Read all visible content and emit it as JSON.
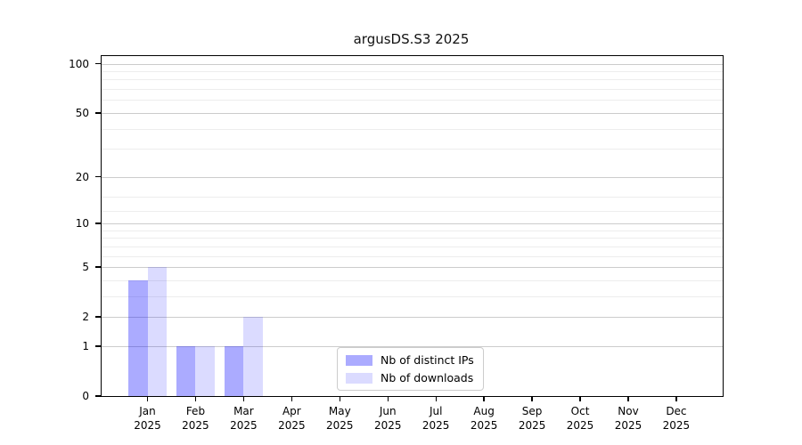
{
  "chart_data": {
    "type": "bar",
    "title": "argusDS.S3 2025",
    "categories": [
      "Jan",
      "Feb",
      "Mar",
      "Apr",
      "May",
      "Jun",
      "Jul",
      "Aug",
      "Sep",
      "Oct",
      "Nov",
      "Dec"
    ],
    "x_tick_year": "2025",
    "series": [
      {
        "name": "Nb of distinct IPs",
        "color": "#0000ff54",
        "values": [
          4,
          1,
          1,
          0,
          0,
          0,
          0,
          0,
          0,
          0,
          0,
          0
        ]
      },
      {
        "name": "Nb of downloads",
        "color": "#0000ff24",
        "values": [
          5,
          1,
          2,
          0,
          0,
          0,
          0,
          0,
          0,
          0,
          0,
          0
        ]
      }
    ],
    "y_scale": "log10(value+1)",
    "y_ticks": [
      0,
      1,
      2,
      5,
      10,
      20,
      50,
      100
    ],
    "y_minor_gridlines": [
      3,
      4,
      6,
      7,
      8,
      9,
      12,
      15,
      30,
      40,
      60,
      70,
      80,
      90
    ],
    "ylim": [
      0,
      111
    ],
    "xlabel": "",
    "ylabel": "",
    "grid": "horizontal",
    "legend_position": "lower-center-inside",
    "colors": {
      "major_grid": "#cccccc",
      "minor_grid": "#ededed",
      "spine": "#000000",
      "background": "#ffffff"
    }
  }
}
